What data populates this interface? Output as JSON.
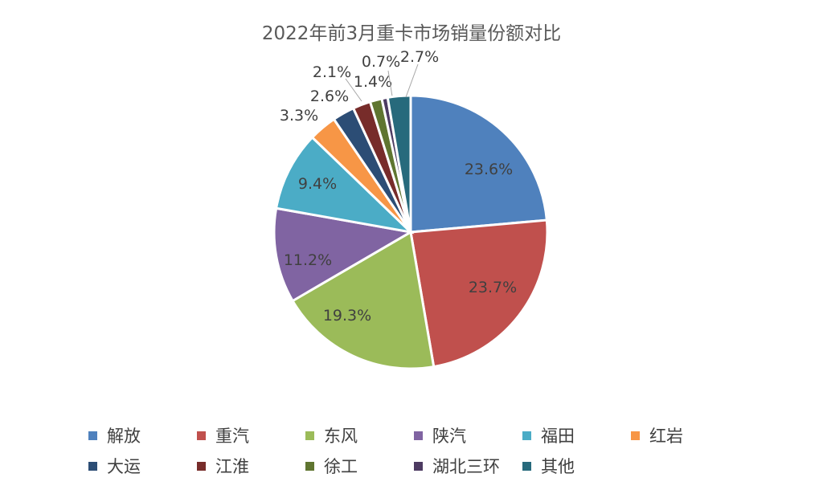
{
  "chart_data": {
    "type": "pie",
    "title": "2022年前3月重卡市场销量份额对比",
    "start": "12 o'clock, clockwise",
    "legend_position": "bottom",
    "slices": [
      {
        "label": "解放",
        "value": 23.6,
        "display": "23.6%",
        "color": "#4f81bd"
      },
      {
        "label": "重汽",
        "value": 23.7,
        "display": "23.7%",
        "color": "#c0504d"
      },
      {
        "label": "东风",
        "value": 19.3,
        "display": "19.3%",
        "color": "#9bbb59"
      },
      {
        "label": "陕汽",
        "value": 11.2,
        "display": "11.2%",
        "color": "#8064a2"
      },
      {
        "label": "福田",
        "value": 9.4,
        "display": "9.4%",
        "color": "#4bacc6"
      },
      {
        "label": "红岩",
        "value": 3.3,
        "display": "3.3%",
        "color": "#f79646"
      },
      {
        "label": "大运",
        "value": 2.6,
        "display": "2.6%",
        "color": "#2c4d75"
      },
      {
        "label": "江淮",
        "value": 2.1,
        "display": "2.1%",
        "color": "#772c2a"
      },
      {
        "label": "徐工",
        "value": 1.4,
        "display": "1.4%",
        "color": "#5f7530"
      },
      {
        "label": "湖北三环",
        "value": 0.7,
        "display": "0.7%",
        "color": "#4d3b62"
      },
      {
        "label": "其他",
        "value": 2.7,
        "display": "2.7%",
        "color": "#276a7c"
      }
    ]
  }
}
